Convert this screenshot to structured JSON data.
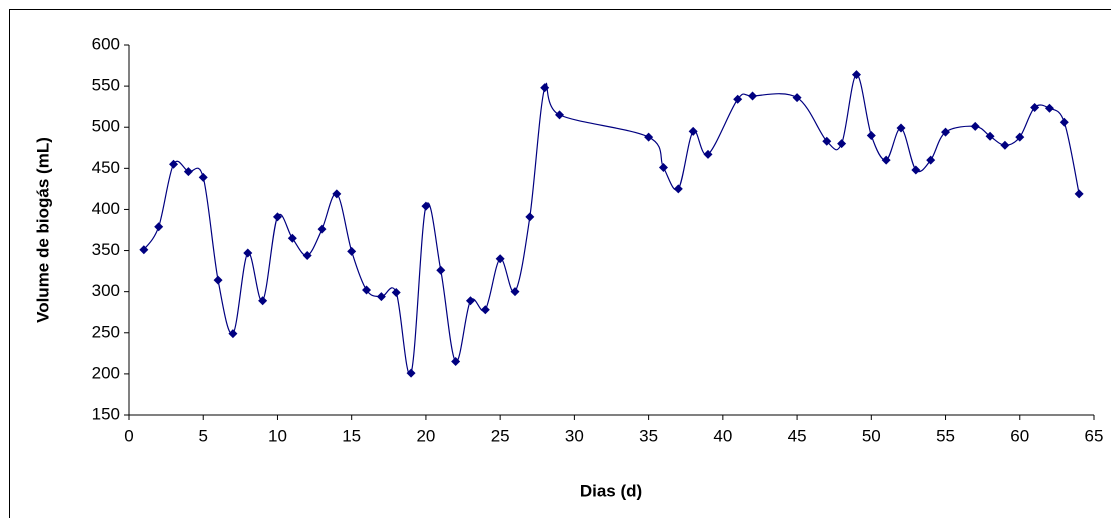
{
  "chart_data": {
    "type": "line",
    "x_label": "Dias (d)",
    "y_label": "Volume de biogás (mL)",
    "color": "#000080",
    "x": [
      1,
      2,
      3,
      4,
      5,
      6,
      7,
      8,
      9,
      10,
      11,
      12,
      13,
      14,
      15,
      16,
      17,
      18,
      19,
      20,
      21,
      22,
      23,
      24,
      25,
      26,
      27,
      28,
      29,
      35,
      36,
      37,
      38,
      39,
      41,
      42,
      45,
      47,
      48,
      49,
      50,
      51,
      52,
      53,
      54,
      55,
      57,
      58,
      59,
      60,
      61,
      62,
      63,
      64
    ],
    "values": [
      351,
      379,
      455,
      446,
      439,
      314,
      249,
      347,
      289,
      391,
      365,
      344,
      376,
      419,
      349,
      302,
      294,
      299,
      201,
      404,
      326,
      215,
      289,
      278,
      340,
      300,
      391,
      548,
      515,
      488,
      451,
      425,
      495,
      467,
      534,
      538,
      536,
      483,
      480,
      564,
      490,
      460,
      499,
      448,
      460,
      494,
      501,
      489,
      478,
      488,
      524,
      523,
      506,
      419
    ],
    "xlim": [
      0,
      65
    ],
    "xticks": [
      0,
      5,
      10,
      15,
      20,
      25,
      30,
      35,
      40,
      45,
      50,
      55,
      60,
      65
    ],
    "ylim": [
      150,
      600
    ],
    "yticks": [
      150,
      200,
      250,
      300,
      350,
      400,
      450,
      500,
      550,
      600
    ]
  }
}
